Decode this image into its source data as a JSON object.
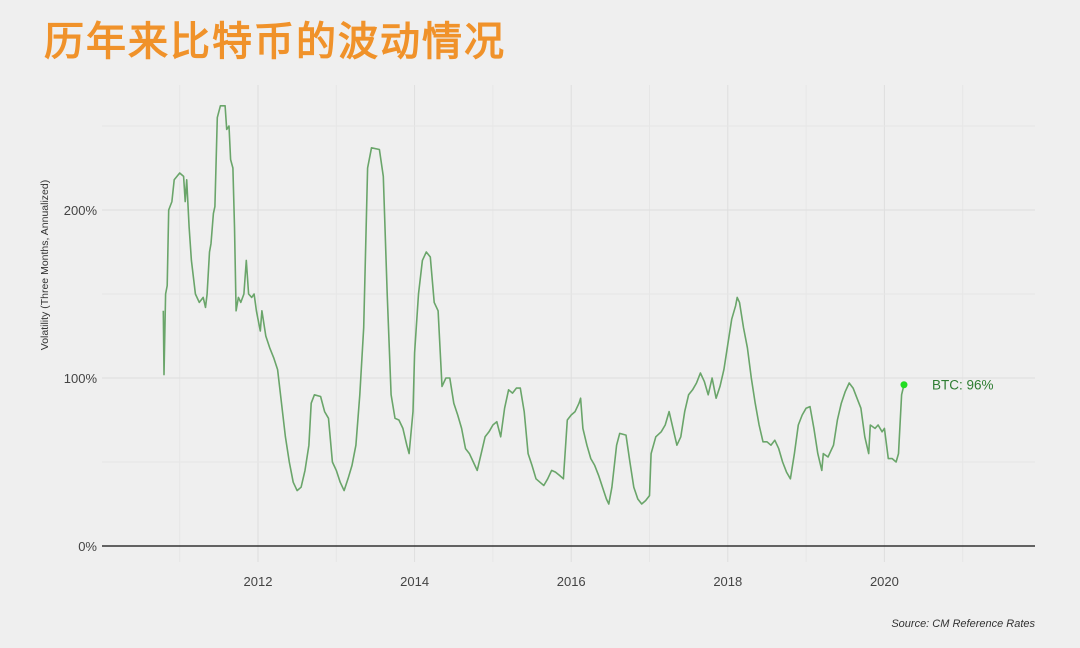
{
  "title": "历年来比特币的波动情况",
  "source": "Source: CM Reference Rates",
  "chart_data": {
    "type": "line",
    "title": "历年来比特币的波动情况",
    "xlabel": "",
    "ylabel": "Volatility (Three Months, Annualized)",
    "x_ticks": [
      "2012",
      "2014",
      "2016",
      "2018",
      "2020"
    ],
    "y_ticks": [
      "0%",
      "100%",
      "200%"
    ],
    "xlim": [
      2010.0,
      2021.9
    ],
    "ylim": [
      -3,
      275
    ],
    "grid": true,
    "series": [
      {
        "name": "BTC",
        "color": "#6aa56a",
        "points": [
          [
            2010.79,
            140
          ],
          [
            2010.8,
            102
          ],
          [
            2010.82,
            150
          ],
          [
            2010.84,
            155
          ],
          [
            2010.86,
            200
          ],
          [
            2010.9,
            205
          ],
          [
            2010.93,
            218
          ],
          [
            2011.0,
            222
          ],
          [
            2011.05,
            220
          ],
          [
            2011.07,
            205
          ],
          [
            2011.09,
            218
          ],
          [
            2011.12,
            190
          ],
          [
            2011.15,
            170
          ],
          [
            2011.2,
            150
          ],
          [
            2011.25,
            145
          ],
          [
            2011.3,
            148
          ],
          [
            2011.33,
            142
          ],
          [
            2011.35,
            150
          ],
          [
            2011.38,
            175
          ],
          [
            2011.4,
            180
          ],
          [
            2011.43,
            198
          ],
          [
            2011.45,
            202
          ],
          [
            2011.48,
            255
          ],
          [
            2011.52,
            262
          ],
          [
            2011.58,
            262
          ],
          [
            2011.6,
            248
          ],
          [
            2011.63,
            250
          ],
          [
            2011.65,
            230
          ],
          [
            2011.68,
            225
          ],
          [
            2011.7,
            190
          ],
          [
            2011.72,
            140
          ],
          [
            2011.75,
            148
          ],
          [
            2011.78,
            145
          ],
          [
            2011.82,
            150
          ],
          [
            2011.85,
            170
          ],
          [
            2011.88,
            150
          ],
          [
            2011.92,
            148
          ],
          [
            2011.95,
            150
          ],
          [
            2011.98,
            140
          ],
          [
            2012.0,
            135
          ],
          [
            2012.03,
            128
          ],
          [
            2012.05,
            140
          ],
          [
            2012.1,
            125
          ],
          [
            2012.15,
            118
          ],
          [
            2012.2,
            112
          ],
          [
            2012.25,
            105
          ],
          [
            2012.3,
            85
          ],
          [
            2012.35,
            65
          ],
          [
            2012.4,
            50
          ],
          [
            2012.45,
            38
          ],
          [
            2012.5,
            33
          ],
          [
            2012.55,
            35
          ],
          [
            2012.6,
            45
          ],
          [
            2012.65,
            60
          ],
          [
            2012.68,
            85
          ],
          [
            2012.72,
            90
          ],
          [
            2012.8,
            89
          ],
          [
            2012.85,
            80
          ],
          [
            2012.9,
            76
          ],
          [
            2012.95,
            50
          ],
          [
            2013.0,
            45
          ],
          [
            2013.05,
            38
          ],
          [
            2013.1,
            33
          ],
          [
            2013.15,
            40
          ],
          [
            2013.2,
            48
          ],
          [
            2013.25,
            60
          ],
          [
            2013.3,
            90
          ],
          [
            2013.35,
            130
          ],
          [
            2013.4,
            225
          ],
          [
            2013.45,
            237
          ],
          [
            2013.55,
            236
          ],
          [
            2013.6,
            220
          ],
          [
            2013.65,
            150
          ],
          [
            2013.7,
            90
          ],
          [
            2013.75,
            76
          ],
          [
            2013.8,
            75
          ],
          [
            2013.85,
            70
          ],
          [
            2013.9,
            60
          ],
          [
            2013.93,
            55
          ],
          [
            2013.98,
            80
          ],
          [
            2014.0,
            115
          ],
          [
            2014.05,
            150
          ],
          [
            2014.1,
            170
          ],
          [
            2014.15,
            175
          ],
          [
            2014.2,
            172
          ],
          [
            2014.25,
            145
          ],
          [
            2014.3,
            140
          ],
          [
            2014.35,
            95
          ],
          [
            2014.4,
            100
          ],
          [
            2014.45,
            100
          ],
          [
            2014.5,
            85
          ],
          [
            2014.55,
            78
          ],
          [
            2014.6,
            70
          ],
          [
            2014.65,
            58
          ],
          [
            2014.7,
            55
          ],
          [
            2014.75,
            50
          ],
          [
            2014.8,
            45
          ],
          [
            2014.85,
            55
          ],
          [
            2014.9,
            65
          ],
          [
            2014.95,
            68
          ],
          [
            2015.0,
            72
          ],
          [
            2015.05,
            74
          ],
          [
            2015.1,
            65
          ],
          [
            2015.15,
            82
          ],
          [
            2015.2,
            93
          ],
          [
            2015.25,
            91
          ],
          [
            2015.3,
            94
          ],
          [
            2015.35,
            94
          ],
          [
            2015.4,
            80
          ],
          [
            2015.45,
            55
          ],
          [
            2015.5,
            48
          ],
          [
            2015.55,
            40
          ],
          [
            2015.6,
            38
          ],
          [
            2015.65,
            36
          ],
          [
            2015.7,
            40
          ],
          [
            2015.75,
            45
          ],
          [
            2015.8,
            44
          ],
          [
            2015.85,
            42
          ],
          [
            2015.9,
            40
          ],
          [
            2015.95,
            75
          ],
          [
            2016.0,
            78
          ],
          [
            2016.05,
            80
          ],
          [
            2016.1,
            85
          ],
          [
            2016.12,
            88
          ],
          [
            2016.15,
            70
          ],
          [
            2016.2,
            60
          ],
          [
            2016.25,
            52
          ],
          [
            2016.3,
            48
          ],
          [
            2016.35,
            42
          ],
          [
            2016.4,
            35
          ],
          [
            2016.45,
            28
          ],
          [
            2016.48,
            25
          ],
          [
            2016.52,
            35
          ],
          [
            2016.58,
            60
          ],
          [
            2016.62,
            67
          ],
          [
            2016.7,
            66
          ],
          [
            2016.75,
            50
          ],
          [
            2016.8,
            35
          ],
          [
            2016.85,
            28
          ],
          [
            2016.9,
            25
          ],
          [
            2016.95,
            27
          ],
          [
            2017.0,
            30
          ],
          [
            2017.02,
            55
          ],
          [
            2017.08,
            65
          ],
          [
            2017.15,
            68
          ],
          [
            2017.2,
            72
          ],
          [
            2017.25,
            80
          ],
          [
            2017.3,
            70
          ],
          [
            2017.35,
            60
          ],
          [
            2017.4,
            65
          ],
          [
            2017.45,
            80
          ],
          [
            2017.5,
            90
          ],
          [
            2017.55,
            93
          ],
          [
            2017.6,
            97
          ],
          [
            2017.65,
            103
          ],
          [
            2017.7,
            98
          ],
          [
            2017.75,
            90
          ],
          [
            2017.8,
            100
          ],
          [
            2017.85,
            88
          ],
          [
            2017.9,
            95
          ],
          [
            2017.95,
            105
          ],
          [
            2018.0,
            120
          ],
          [
            2018.05,
            135
          ],
          [
            2018.1,
            143
          ],
          [
            2018.12,
            148
          ],
          [
            2018.15,
            145
          ],
          [
            2018.2,
            130
          ],
          [
            2018.25,
            118
          ],
          [
            2018.3,
            100
          ],
          [
            2018.35,
            85
          ],
          [
            2018.4,
            72
          ],
          [
            2018.45,
            62
          ],
          [
            2018.5,
            62
          ],
          [
            2018.55,
            60
          ],
          [
            2018.6,
            63
          ],
          [
            2018.65,
            58
          ],
          [
            2018.7,
            50
          ],
          [
            2018.75,
            44
          ],
          [
            2018.8,
            40
          ],
          [
            2018.85,
            55
          ],
          [
            2018.9,
            72
          ],
          [
            2018.95,
            78
          ],
          [
            2019.0,
            82
          ],
          [
            2019.05,
            83
          ],
          [
            2019.1,
            70
          ],
          [
            2019.15,
            55
          ],
          [
            2019.2,
            45
          ],
          [
            2019.22,
            55
          ],
          [
            2019.28,
            53
          ],
          [
            2019.35,
            60
          ],
          [
            2019.4,
            75
          ],
          [
            2019.45,
            85
          ],
          [
            2019.5,
            92
          ],
          [
            2019.55,
            97
          ],
          [
            2019.6,
            94
          ],
          [
            2019.65,
            88
          ],
          [
            2019.7,
            82
          ],
          [
            2019.75,
            65
          ],
          [
            2019.8,
            55
          ],
          [
            2019.82,
            72
          ],
          [
            2019.88,
            70
          ],
          [
            2019.92,
            72
          ],
          [
            2019.97,
            68
          ],
          [
            2020.0,
            70
          ],
          [
            2020.05,
            52
          ],
          [
            2020.1,
            52
          ],
          [
            2020.15,
            50
          ],
          [
            2020.18,
            55
          ],
          [
            2020.22,
            90
          ],
          [
            2020.25,
            96
          ]
        ]
      }
    ],
    "annotations": [
      {
        "text": "BTC: 96%",
        "x": 2020.25,
        "y": 96,
        "marker_color": "#22dd22",
        "text_color": "#2e7d32"
      }
    ]
  }
}
